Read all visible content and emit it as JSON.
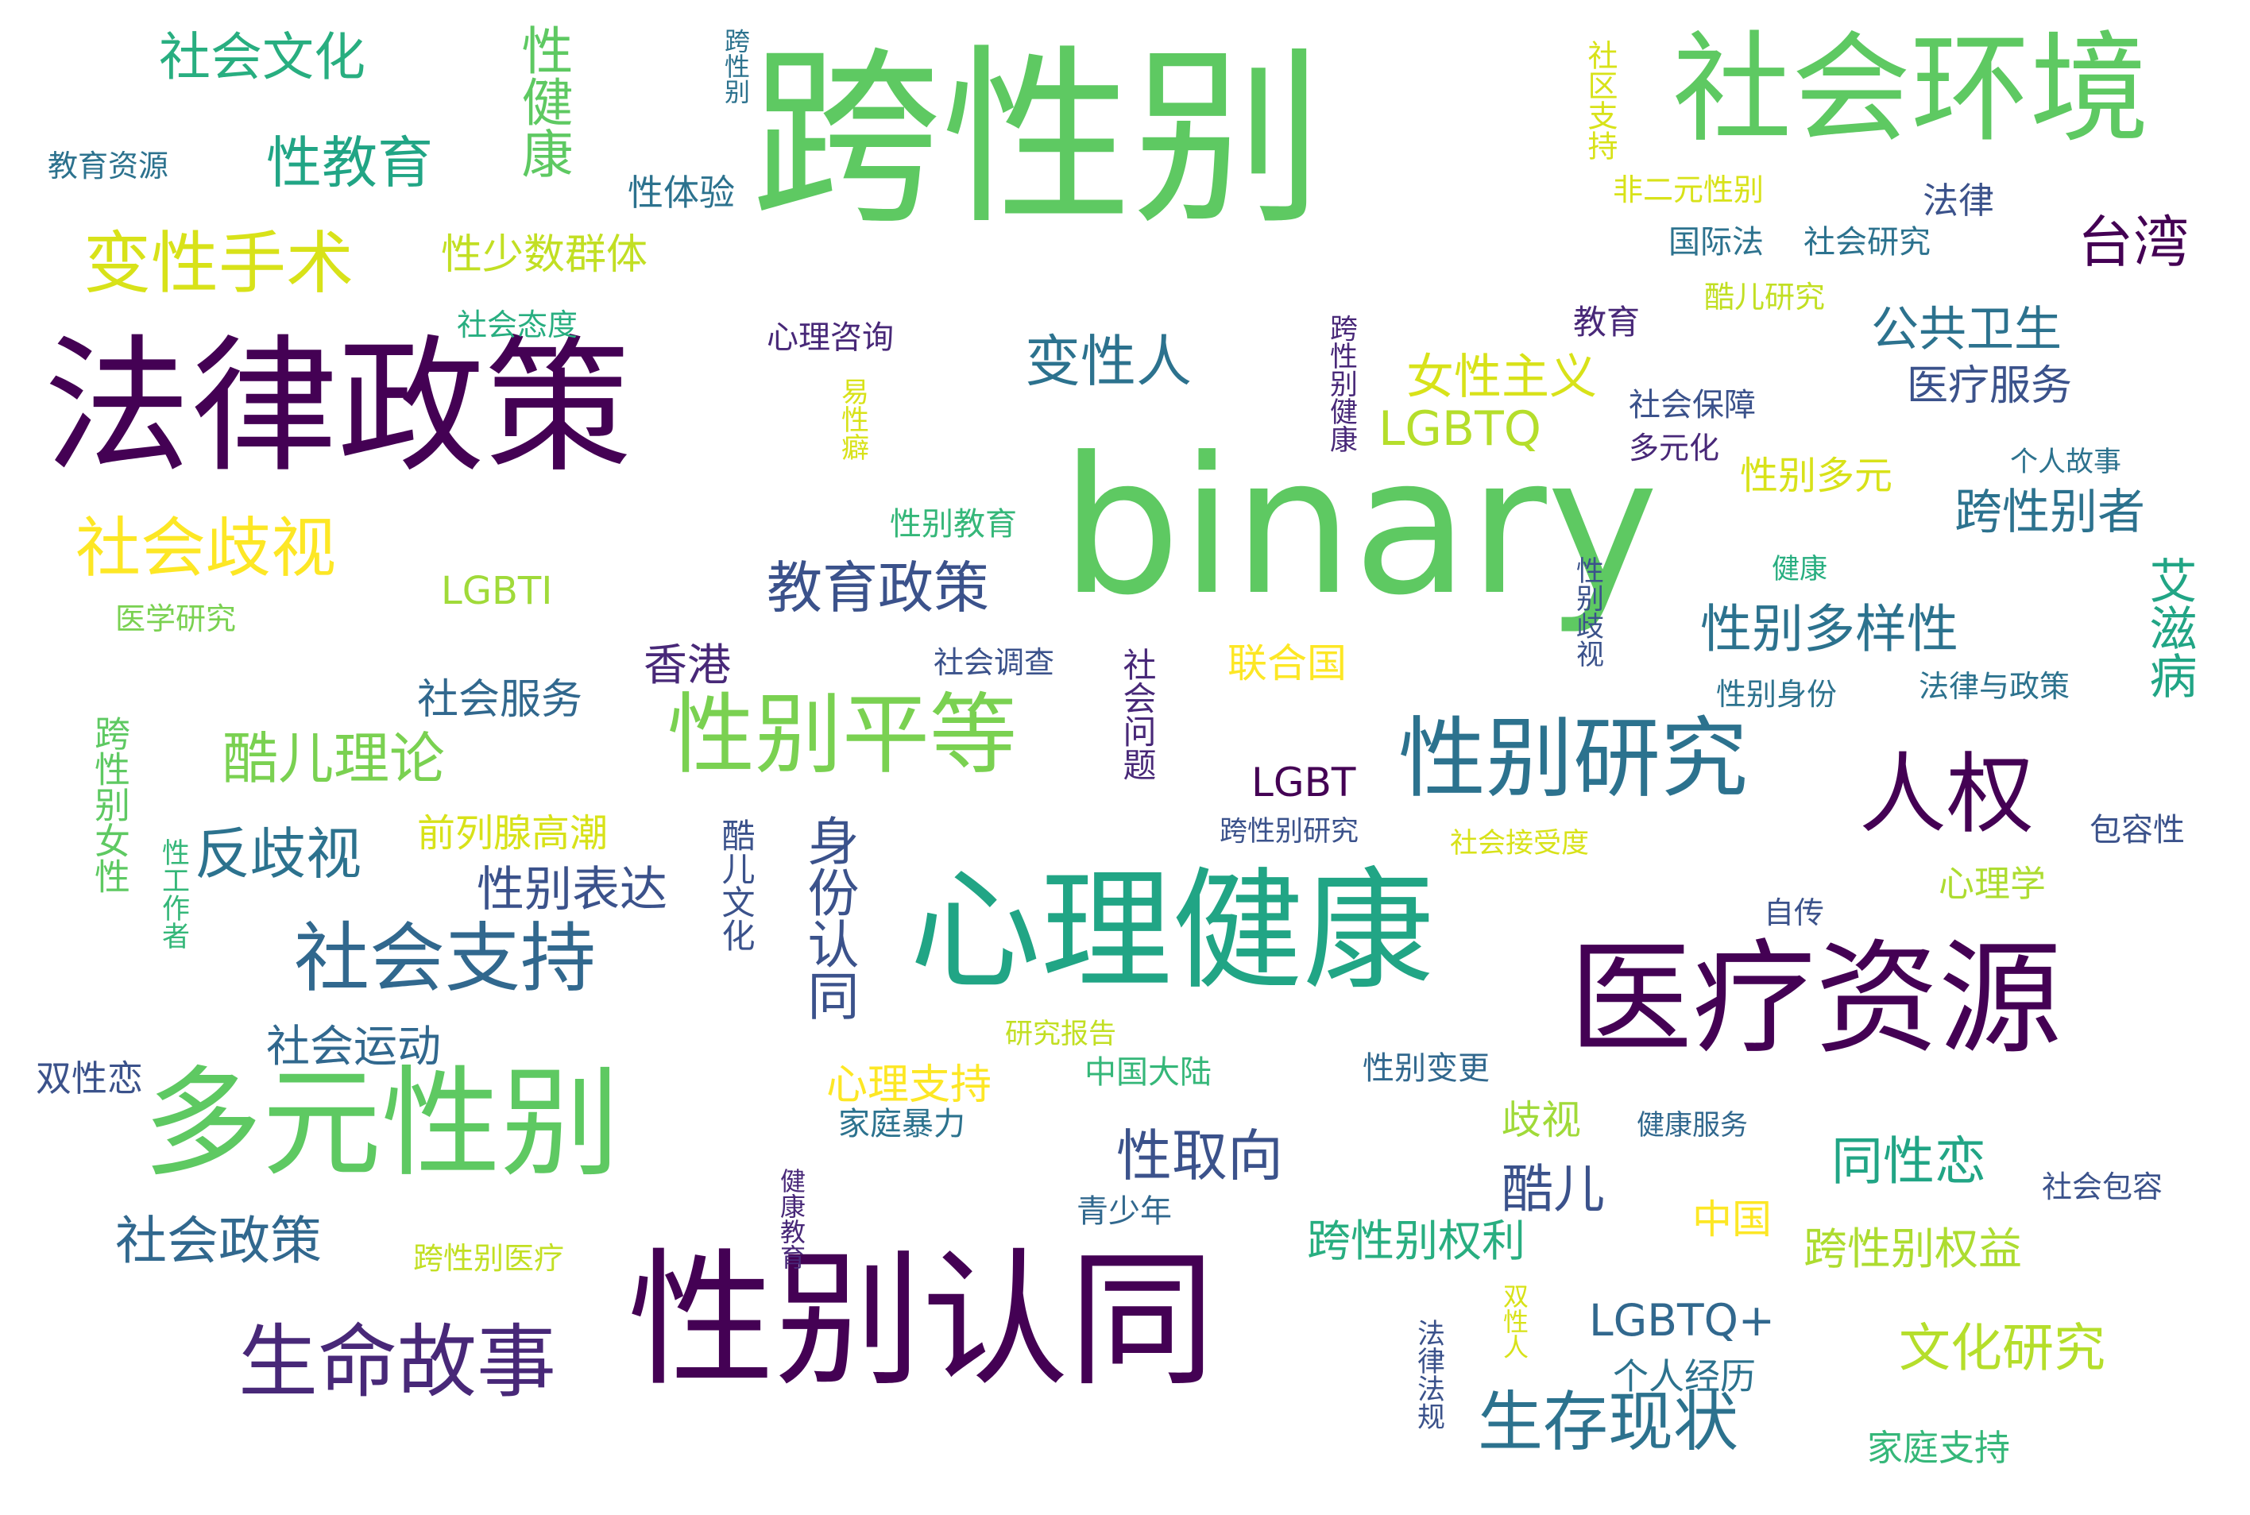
{
  "words": [
    {
      "text": "跨性别",
      "color": "#5ec962",
      "vertical": false
    },
    {
      "text": "binary",
      "color": "#5ec962",
      "vertical": false
    },
    {
      "text": "法律政策",
      "color": "#440154",
      "vertical": false
    },
    {
      "text": "性别认同",
      "color": "#440154",
      "vertical": false
    },
    {
      "text": "心理健康",
      "color": "#21a585",
      "vertical": false
    },
    {
      "text": "医疗资源",
      "color": "#440154",
      "vertical": false
    },
    {
      "text": "社会环境",
      "color": "#5ec962",
      "vertical": false
    },
    {
      "text": "多元性别",
      "color": "#5ec962",
      "vertical": false
    },
    {
      "text": "性别平等",
      "color": "#7ad151",
      "vertical": false
    },
    {
      "text": "性别研究",
      "color": "#2c728e",
      "vertical": false
    },
    {
      "text": "人权",
      "color": "#440154",
      "vertical": false
    },
    {
      "text": "生命故事",
      "color": "#482878",
      "vertical": false
    },
    {
      "text": "社会支持",
      "color": "#31688e",
      "vertical": false
    },
    {
      "text": "变性手术",
      "color": "#d8e219",
      "vertical": false
    },
    {
      "text": "社会歧视",
      "color": "#fde725",
      "vertical": false
    },
    {
      "text": "生存现状",
      "color": "#2c728e",
      "vertical": false
    },
    {
      "text": "身份认同",
      "color": "#3b528b",
      "vertical": true
    },
    {
      "text": "变性人",
      "color": "#2c728e",
      "vertical": false
    },
    {
      "text": "性教育",
      "color": "#21a585",
      "vertical": false
    },
    {
      "text": "教育政策",
      "color": "#3b528b",
      "vertical": false
    },
    {
      "text": "跨性别者",
      "color": "#2c728e",
      "vertical": false
    },
    {
      "text": "性别多样性",
      "color": "#2c728e",
      "vertical": false
    },
    {
      "text": "台湾",
      "color": "#440154",
      "vertical": false
    },
    {
      "text": "社会文化",
      "color": "#28ae80",
      "vertical": false
    },
    {
      "text": "性健康",
      "color": "#5ec962",
      "vertical": true
    },
    {
      "text": "酷儿理论",
      "color": "#7ad151",
      "vertical": false
    },
    {
      "text": "反歧视",
      "color": "#2c728e",
      "vertical": false
    },
    {
      "text": "社会政策",
      "color": "#31688e",
      "vertical": false
    },
    {
      "text": "性取向",
      "color": "#3b528b",
      "vertical": false
    },
    {
      "text": "酷儿",
      "color": "#3b528b",
      "vertical": false
    },
    {
      "text": "同性恋",
      "color": "#21a585",
      "vertical": false
    },
    {
      "text": "文化研究",
      "color": "#b5de2b",
      "vertical": false
    },
    {
      "text": "LGBTQ+",
      "color": "#31688e",
      "vertical": false
    },
    {
      "text": "LGBTQ",
      "color": "#b5de2b",
      "vertical": false
    },
    {
      "text": "公共卫生",
      "color": "#2c728e",
      "vertical": false
    },
    {
      "text": "女性主义",
      "color": "#d8e219",
      "vertical": false
    },
    {
      "text": "艾滋病",
      "color": "#21a585",
      "vertical": true
    },
    {
      "text": "性别表达",
      "color": "#3b528b",
      "vertical": false
    },
    {
      "text": "社会运动",
      "color": "#31688e",
      "vertical": false
    },
    {
      "text": "跨性别权利",
      "color": "#28ae80",
      "vertical": false
    },
    {
      "text": "跨性别权益",
      "color": "#addc30",
      "vertical": false
    },
    {
      "text": "性少数群体",
      "color": "#c2df23",
      "vertical": false
    },
    {
      "text": "医疗服务",
      "color": "#3b528b",
      "vertical": false
    },
    {
      "text": "香港",
      "color": "#482878",
      "vertical": false
    },
    {
      "text": "联合国",
      "color": "#fde725",
      "vertical": false
    },
    {
      "text": "LGBT",
      "color": "#440154",
      "vertical": false
    },
    {
      "text": "社会服务",
      "color": "#31688e",
      "vertical": false
    },
    {
      "text": "心理支持",
      "color": "#fde725",
      "vertical": false
    },
    {
      "text": "前列腺高潮",
      "color": "#d8e219",
      "vertical": false
    },
    {
      "text": "性别多元",
      "color": "#d8e219",
      "vertical": false
    },
    {
      "text": "跨性别女性",
      "color": "#5ec962",
      "vertical": true
    },
    {
      "text": "酷儿文化",
      "color": "#3b528b",
      "vertical": true
    },
    {
      "text": "社会问题",
      "color": "#482878",
      "vertical": true
    },
    {
      "text": "歧视",
      "color": "#a0da39",
      "vertical": false
    },
    {
      "text": "中国",
      "color": "#fde725",
      "vertical": false
    },
    {
      "text": "心理学",
      "color": "#addc30",
      "vertical": false
    },
    {
      "text": "家庭支持",
      "color": "#35b779",
      "vertical": false
    },
    {
      "text": "个人经历",
      "color": "#2c728e",
      "vertical": false
    },
    {
      "text": "性体验",
      "color": "#2c728e",
      "vertical": false
    },
    {
      "text": "法律",
      "color": "#3b528b",
      "vertical": false
    },
    {
      "text": "国际法",
      "color": "#2c728e",
      "vertical": false
    },
    {
      "text": "社会研究",
      "color": "#2c728e",
      "vertical": false
    },
    {
      "text": "非二元性别",
      "color": "#d8e219",
      "vertical": false
    },
    {
      "text": "社区支持",
      "color": "#d8e219",
      "vertical": true
    },
    {
      "text": "酷儿研究",
      "color": "#c2df23",
      "vertical": false
    },
    {
      "text": "教育",
      "color": "#482878",
      "vertical": false
    },
    {
      "text": "社会保障",
      "color": "#3b528b",
      "vertical": false
    },
    {
      "text": "多元化",
      "color": "#482878",
      "vertical": false
    },
    {
      "text": "心理咨询",
      "color": "#482878",
      "vertical": false
    },
    {
      "text": "性别教育",
      "color": "#35b779",
      "vertical": false
    },
    {
      "text": "社会调查",
      "color": "#3b528b",
      "vertical": false
    },
    {
      "text": "家庭暴力",
      "color": "#2c728e",
      "vertical": false
    },
    {
      "text": "青少年",
      "color": "#31688e",
      "vertical": false
    },
    {
      "text": "中国大陆",
      "color": "#35b779",
      "vertical": false
    },
    {
      "text": "研究报告",
      "color": "#c2df23",
      "vertical": false
    },
    {
      "text": "性别变更",
      "color": "#31688e",
      "vertical": false
    },
    {
      "text": "健康服务",
      "color": "#31688e",
      "vertical": false
    },
    {
      "text": "跨性别研究",
      "color": "#3b528b",
      "vertical": false
    },
    {
      "text": "社会接受度",
      "color": "#d8e219",
      "vertical": false
    },
    {
      "text": "自传",
      "color": "#3b528b",
      "vertical": false
    },
    {
      "text": "社会包容",
      "color": "#3b528b",
      "vertical": false
    },
    {
      "text": "包容性",
      "color": "#3b528b",
      "vertical": false
    },
    {
      "text": "法律与政策",
      "color": "#2c728e",
      "vertical": false
    },
    {
      "text": "性别身份",
      "color": "#2c728e",
      "vertical": false
    },
    {
      "text": "性别歧视",
      "color": "#3b528b",
      "vertical": true
    },
    {
      "text": "健康",
      "color": "#28ae80",
      "vertical": false
    },
    {
      "text": "个人故事",
      "color": "#2c728e",
      "vertical": false
    },
    {
      "text": "跨性别健康",
      "color": "#482878",
      "vertical": true
    },
    {
      "text": "易性癖",
      "color": "#d8e219",
      "vertical": true
    },
    {
      "text": "LGBTI",
      "color": "#a0da39",
      "vertical": false
    },
    {
      "text": "医学研究",
      "color": "#7ad151",
      "vertical": false
    },
    {
      "text": "社会态度",
      "color": "#28ae80",
      "vertical": false
    },
    {
      "text": "教育资源",
      "color": "#2c728e",
      "vertical": false
    },
    {
      "text": "跨性别",
      "color": "#2c728e",
      "vertical": true
    },
    {
      "text": "双性恋",
      "color": "#3b528b",
      "vertical": false
    },
    {
      "text": "性工作者",
      "color": "#35b779",
      "vertical": true
    },
    {
      "text": "健康教育",
      "color": "#482878",
      "vertical": true
    },
    {
      "text": "跨性别医疗",
      "color": "#c2df23",
      "vertical": false
    },
    {
      "text": "法律法规",
      "color": "#3b528b",
      "vertical": true
    },
    {
      "text": "双性人",
      "color": "#d8e219",
      "vertical": true
    }
  ]
}
